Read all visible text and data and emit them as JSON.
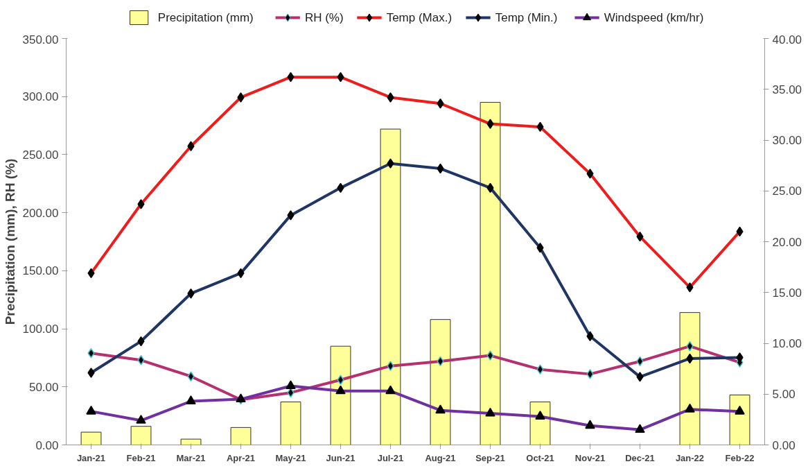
{
  "chart_data": {
    "type": "line",
    "ylabel": "Precipitation (mm), RH (%)",
    "legend": "top",
    "grid": false,
    "categories": [
      "Jan-21",
      "Feb-21",
      "Mar-21",
      "Apr-21",
      "May-21",
      "Jun-21",
      "Jul-21",
      "Aug-21",
      "Sep-21",
      "Oct-21",
      "Nov-21",
      "Dec-21",
      "Jan-22",
      "Feb-22"
    ],
    "ylim": [
      0,
      350
    ],
    "yticks": [
      {
        "value": 0,
        "label": "0.00"
      },
      {
        "value": 50,
        "label": "50.00"
      },
      {
        "value": 100,
        "label": "100.00"
      },
      {
        "value": 150,
        "label": "150.00"
      },
      {
        "value": 200,
        "label": "200.00"
      },
      {
        "value": 250,
        "label": "250.00"
      },
      {
        "value": 300,
        "label": "300.00"
      },
      {
        "value": 350,
        "label": "350.00"
      }
    ],
    "y2lim": [
      0,
      40
    ],
    "y2ticks": [
      {
        "value": 0,
        "label": "0.00"
      },
      {
        "value": 5,
        "label": "5.00"
      },
      {
        "value": 10,
        "label": "10.00"
      },
      {
        "value": 15,
        "label": "15.00"
      },
      {
        "value": 20,
        "label": "20.00"
      },
      {
        "value": 25,
        "label": "25.00"
      },
      {
        "value": 30,
        "label": "30.00"
      },
      {
        "value": 35,
        "label": "35.00"
      },
      {
        "value": 40,
        "label": "40.00"
      }
    ],
    "series": [
      {
        "name": "Precipitation (mm)",
        "type": "bar",
        "color": "#ffff99",
        "values": [
          11,
          16,
          5,
          15,
          37,
          85,
          272,
          108,
          295,
          37,
          null,
          null,
          114,
          43
        ]
      },
      {
        "name": "RH (%)",
        "marker": "diamond",
        "color": "#b5306e",
        "values": [
          79,
          73,
          59,
          39,
          45,
          56,
          68,
          72,
          77,
          65,
          61,
          72,
          85,
          71
        ]
      },
      {
        "name": "Temp (Max.)",
        "marker": "diamond",
        "axis": "y2",
        "color": "#ee1c1c",
        "values": [
          16.9,
          23.7,
          29.4,
          34.2,
          36.2,
          36.2,
          34.2,
          33.6,
          31.6,
          31.3,
          26.7,
          20.5,
          15.5,
          21.0
        ]
      },
      {
        "name": "Temp (Min.)",
        "marker": "diamond",
        "axis": "y2",
        "color": "#1f3563",
        "values": [
          7.1,
          10.2,
          14.9,
          16.9,
          22.6,
          25.3,
          27.7,
          27.2,
          25.3,
          19.4,
          10.7,
          6.7,
          8.5,
          8.6
        ]
      },
      {
        "name": "Windspeed (km/hr)",
        "marker": "triangle",
        "axis": "y2",
        "color": "#7030a0",
        "values": [
          3.3,
          2.4,
          4.3,
          4.5,
          5.8,
          5.3,
          5.3,
          3.4,
          3.1,
          2.8,
          1.9,
          1.5,
          3.5,
          3.3
        ]
      }
    ]
  }
}
